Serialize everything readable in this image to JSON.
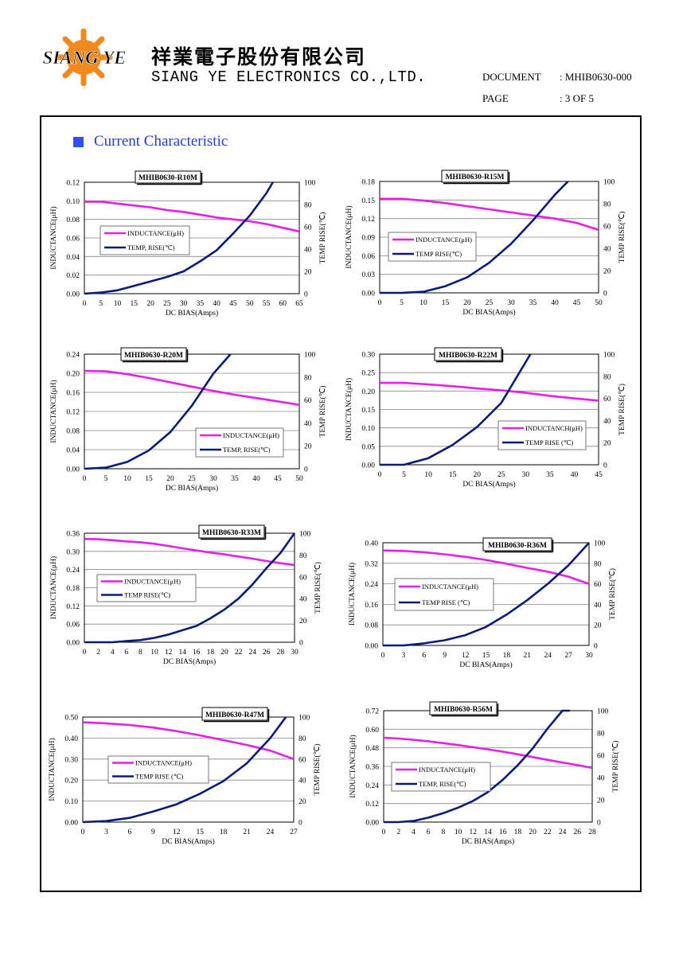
{
  "header": {
    "company_cn": "祥業電子股份有限公司",
    "company_en": "SIANG YE ELECTRONICS CO.,LTD.",
    "logo_text": "SIANG YE",
    "document_label": "DOCUMENT",
    "document_value": ": MHIB0630-000",
    "page_label": "PAGE",
    "page_value": ": 3 OF 5"
  },
  "section": {
    "title": "Current Characteristic"
  },
  "colors": {
    "inductance": "#e61ee6",
    "temp": "#0a1a78",
    "title_blue": "#1f3fd8"
  },
  "chart_data": [
    {
      "type": "line",
      "title": "MHIB0630-R10M",
      "xlabel": "DC BIAS(Amps)",
      "ylabel": "INDUCTANCE(μH)",
      "y2label": "TEMP RISE(℃)",
      "xlim": [
        0,
        65
      ],
      "x_ticks": [
        0,
        5,
        10,
        15,
        20,
        25,
        30,
        35,
        40,
        45,
        50,
        55,
        60,
        65
      ],
      "ylim": [
        0,
        0.12
      ],
      "y_ticks": [
        "0.00",
        "0.02",
        "0.04",
        "0.06",
        "0.08",
        "0.10",
        "0.12"
      ],
      "y2lim": [
        0,
        100
      ],
      "y2_ticks": [
        0,
        20,
        40,
        60,
        80,
        100
      ],
      "legend_position": "middle-left",
      "series": [
        {
          "name": "INDUCTANCE(μH)",
          "axis": "left",
          "x": [
            0,
            5,
            10,
            15,
            20,
            25,
            30,
            35,
            40,
            45,
            50,
            55,
            60,
            65
          ],
          "values": [
            0.099,
            0.099,
            0.097,
            0.095,
            0.093,
            0.09,
            0.088,
            0.085,
            0.082,
            0.08,
            0.078,
            0.075,
            0.071,
            0.067
          ]
        },
        {
          "name": "TEMP, RISE(℃)",
          "axis": "right",
          "x": [
            0,
            5,
            10,
            15,
            20,
            25,
            30,
            35,
            40,
            45,
            50,
            55,
            57
          ],
          "values": [
            0,
            1,
            3,
            7,
            11,
            15,
            20,
            29,
            39,
            54,
            70,
            90,
            100
          ]
        }
      ]
    },
    {
      "type": "line",
      "title": "MHIB0630-R15M",
      "xlabel": "DC BIAS(Amps)",
      "ylabel": "INDUCTANCE(μH)",
      "y2label": "TEMP RISE(℃)",
      "xlim": [
        0,
        50
      ],
      "x_ticks": [
        0,
        5,
        10,
        15,
        20,
        25,
        30,
        35,
        40,
        45,
        50
      ],
      "ylim": [
        0,
        0.18
      ],
      "y_ticks": [
        "0.00",
        "0.03",
        "0.06",
        "0.09",
        "0.12",
        "0.15",
        "0.18"
      ],
      "y2lim": [
        0,
        100
      ],
      "y2_ticks": [
        0,
        20,
        40,
        60,
        80,
        100
      ],
      "legend_position": "middle-left",
      "series": [
        {
          "name": "INDUCTANCE(μH)",
          "axis": "left",
          "x": [
            0,
            5,
            10,
            15,
            20,
            25,
            30,
            35,
            40,
            45,
            50
          ],
          "values": [
            0.152,
            0.152,
            0.149,
            0.145,
            0.14,
            0.135,
            0.13,
            0.125,
            0.12,
            0.113,
            0.102
          ]
        },
        {
          "name": "TEMP RISE(℃)",
          "axis": "right",
          "x": [
            0,
            5,
            10,
            15,
            20,
            25,
            30,
            35,
            40,
            43
          ],
          "values": [
            0,
            0,
            1,
            6,
            14,
            27,
            44,
            65,
            88,
            100
          ]
        }
      ]
    },
    {
      "type": "line",
      "title": "MHIB0630-R20M",
      "xlabel": "DC BIAS(Amps)",
      "ylabel": "INDUCTANCE(μH)",
      "y2label": "TEMP RISE(℃)",
      "xlim": [
        0,
        50
      ],
      "x_ticks": [
        0,
        5,
        10,
        15,
        20,
        25,
        30,
        35,
        40,
        45,
        50
      ],
      "ylim": [
        0,
        0.24
      ],
      "y_ticks": [
        "0.00",
        "0.04",
        "0.08",
        "0.12",
        "0.16",
        "0.20",
        "0.24"
      ],
      "y2lim": [
        0,
        100
      ],
      "y2_ticks": [
        0,
        20,
        40,
        60,
        80,
        100
      ],
      "legend_position": "bottom-right",
      "series": [
        {
          "name": "INDUCTANCE(μH)",
          "axis": "left",
          "x": [
            0,
            5,
            10,
            15,
            20,
            25,
            30,
            35,
            40,
            45,
            50
          ],
          "values": [
            0.205,
            0.204,
            0.198,
            0.19,
            0.181,
            0.172,
            0.163,
            0.155,
            0.148,
            0.141,
            0.134
          ]
        },
        {
          "name": "TEMP, RISE(℃)",
          "axis": "right",
          "x": [
            0,
            5,
            10,
            15,
            20,
            25,
            30,
            34
          ],
          "values": [
            0,
            1,
            6,
            16,
            32,
            55,
            83,
            100
          ]
        }
      ]
    },
    {
      "type": "line",
      "title": "MHIB0630-R22M",
      "xlabel": "DC BIAS(Amps)",
      "ylabel": "INDUCTANCE(μH)",
      "y2label": "TEMP RISE(℃)",
      "xlim": [
        0,
        45
      ],
      "x_ticks": [
        0,
        5,
        10,
        15,
        20,
        25,
        30,
        35,
        40,
        45
      ],
      "ylim": [
        0,
        0.3
      ],
      "y_ticks": [
        "0.00",
        "0.05",
        "0.10",
        "0.15",
        "0.20",
        "0.25",
        "0.30"
      ],
      "y2lim": [
        0,
        100
      ],
      "y2_ticks": [
        0,
        20,
        40,
        60,
        80,
        100
      ],
      "legend_position": "bottom-right",
      "series": [
        {
          "name": "INDUCTANCH(μH)",
          "axis": "left",
          "x": [
            0,
            5,
            10,
            15,
            20,
            25,
            30,
            35,
            40,
            45
          ],
          "values": [
            0.222,
            0.222,
            0.218,
            0.213,
            0.207,
            0.202,
            0.195,
            0.187,
            0.18,
            0.174
          ]
        },
        {
          "name": "TEMP RISE (℃)",
          "axis": "right",
          "x": [
            0,
            5,
            10,
            15,
            20,
            25,
            28,
            31
          ],
          "values": [
            0,
            0,
            6,
            18,
            34,
            56,
            78,
            100
          ]
        }
      ]
    },
    {
      "type": "line",
      "title": "MHIB0630-R33M",
      "xlabel": "DC BIAS(Amps)",
      "ylabel": "INDUCTANCE(μH)",
      "y2label": "TEMP RISE(℃)",
      "xlim": [
        0,
        30
      ],
      "x_ticks": [
        0,
        2,
        4,
        6,
        8,
        10,
        12,
        14,
        16,
        18,
        20,
        22,
        24,
        26,
        28,
        30
      ],
      "ylim": [
        0,
        0.36
      ],
      "y_ticks": [
        "0.00",
        "0.06",
        "0.12",
        "0.18",
        "0.24",
        "0.30",
        "0.36"
      ],
      "y2lim": [
        0,
        100
      ],
      "y2_ticks": [
        0,
        20,
        40,
        60,
        80,
        100
      ],
      "legend_position": "middle-left",
      "series": [
        {
          "name": "INDUCTANCE(μH)",
          "axis": "left",
          "x": [
            0,
            2,
            4,
            6,
            8,
            10,
            12,
            14,
            16,
            18,
            20,
            22,
            24,
            26,
            28,
            30
          ],
          "values": [
            0.341,
            0.34,
            0.337,
            0.333,
            0.33,
            0.325,
            0.318,
            0.31,
            0.303,
            0.296,
            0.29,
            0.283,
            0.276,
            0.268,
            0.261,
            0.255
          ]
        },
        {
          "name": "TEMP RISE(℃)",
          "axis": "right",
          "x": [
            0,
            2,
            4,
            6,
            8,
            10,
            12,
            14,
            16,
            18,
            20,
            22,
            24,
            26,
            28,
            30
          ],
          "values": [
            0,
            0,
            0,
            1,
            2,
            4,
            7,
            11,
            15,
            22,
            30,
            40,
            53,
            68,
            82,
            100
          ]
        }
      ]
    },
    {
      "type": "line",
      "title": "MHIB0630-R36M",
      "xlabel": "DC BIAS(Amps)",
      "ylabel": "INDUCTANCE(μH)",
      "y2label": "TEMP RISE(℃)",
      "xlim": [
        0,
        30
      ],
      "x_ticks": [
        0,
        3,
        6,
        9,
        12,
        15,
        18,
        21,
        24,
        27,
        30
      ],
      "ylim": [
        0,
        0.4
      ],
      "y_ticks": [
        "0.00",
        "0.08",
        "0.16",
        "0.24",
        "0.32",
        "0.40"
      ],
      "y2lim": [
        0,
        100
      ],
      "y2_ticks": [
        0,
        20,
        40,
        60,
        80,
        100
      ],
      "legend_position": "middle-left",
      "series": [
        {
          "name": "INDUCTANCE(μH)",
          "axis": "left",
          "x": [
            0,
            3,
            6,
            9,
            12,
            15,
            18,
            21,
            24,
            27,
            30
          ],
          "values": [
            0.37,
            0.368,
            0.363,
            0.355,
            0.345,
            0.333,
            0.318,
            0.302,
            0.287,
            0.268,
            0.24
          ]
        },
        {
          "name": "TEMP RISE (℃)",
          "axis": "right",
          "x": [
            0,
            3,
            6,
            9,
            12,
            15,
            18,
            21,
            24,
            27,
            30
          ],
          "values": [
            0,
            0,
            2,
            5,
            10,
            18,
            30,
            44,
            60,
            78,
            100
          ]
        }
      ]
    },
    {
      "type": "line",
      "title": "MHIB0630-R47M",
      "xlabel": "DC BIAS(Amps)",
      "ylabel": "INDUCTANCE(μH)",
      "y2label": "TEMP RISE(℃)",
      "xlim": [
        0,
        27
      ],
      "x_ticks": [
        0,
        3,
        6,
        9,
        12,
        15,
        18,
        21,
        24,
        27
      ],
      "ylim": [
        0,
        0.5
      ],
      "y_ticks": [
        "0.00",
        "0.10",
        "0.20",
        "0.30",
        "0.40",
        "0.50"
      ],
      "y2lim": [
        0,
        100
      ],
      "y2_ticks": [
        0,
        20,
        40,
        60,
        80,
        100
      ],
      "legend_position": "middle-left",
      "series": [
        {
          "name": "INDUCTANCE(μH)",
          "axis": "left",
          "x": [
            0,
            3,
            6,
            9,
            12,
            15,
            18,
            21,
            24,
            27
          ],
          "values": [
            0.475,
            0.47,
            0.462,
            0.45,
            0.433,
            0.413,
            0.39,
            0.367,
            0.34,
            0.3
          ]
        },
        {
          "name": "TEMP RISE (℃)",
          "axis": "right",
          "x": [
            0,
            3,
            6,
            9,
            12,
            15,
            18,
            21,
            24,
            26
          ],
          "values": [
            0,
            1,
            4,
            10,
            17,
            27,
            39,
            56,
            80,
            100
          ]
        }
      ]
    },
    {
      "type": "line",
      "title": "MHIB0630-R56M",
      "xlabel": "DC BIAS(Amps)",
      "ylabel": "INDUCTANCE(μH)",
      "y2label": "TEMP RISE(℃)",
      "xlim": [
        0,
        28
      ],
      "x_ticks": [
        0,
        2,
        4,
        6,
        8,
        10,
        12,
        14,
        16,
        18,
        20,
        22,
        24,
        26,
        28
      ],
      "ylim": [
        0,
        0.72
      ],
      "y_ticks": [
        "0.00",
        "0.12",
        "0.24",
        "0.36",
        "0.48",
        "0.60",
        "0.72"
      ],
      "y2lim": [
        0,
        100
      ],
      "y2_ticks": [
        0,
        20,
        40,
        60,
        80,
        100
      ],
      "legend_position": "middle-left",
      "series": [
        {
          "name": "INDUCTANCE(μH)",
          "axis": "left",
          "x": [
            0,
            2,
            4,
            6,
            8,
            10,
            12,
            14,
            16,
            18,
            20,
            22,
            24,
            26,
            28
          ],
          "values": [
            0.545,
            0.54,
            0.532,
            0.522,
            0.51,
            0.498,
            0.484,
            0.47,
            0.455,
            0.438,
            0.42,
            0.402,
            0.385,
            0.368,
            0.35
          ]
        },
        {
          "name": "TEMP, RISE(℃)",
          "axis": "right",
          "x": [
            0,
            2,
            4,
            6,
            8,
            10,
            12,
            14,
            16,
            18,
            20,
            22,
            24,
            25
          ],
          "values": [
            0,
            0,
            1,
            4,
            8,
            13,
            19,
            27,
            38,
            51,
            66,
            84,
            100,
            100
          ]
        }
      ]
    }
  ]
}
